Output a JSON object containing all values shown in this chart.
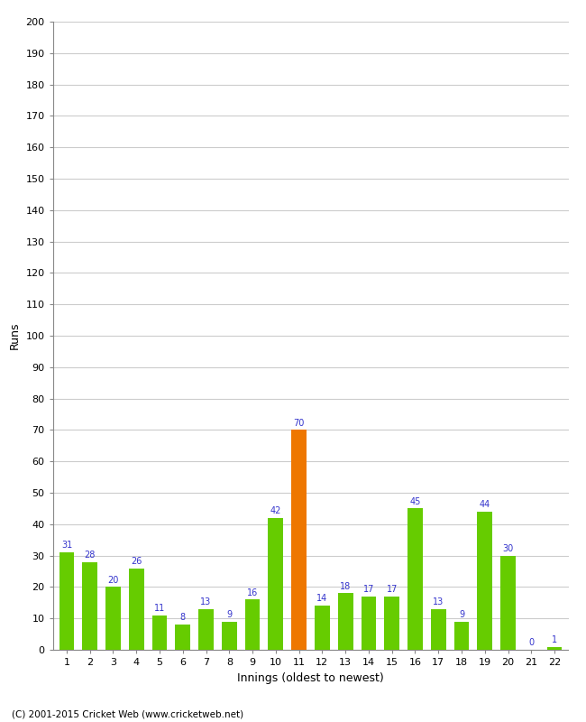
{
  "innings": [
    1,
    2,
    3,
    4,
    5,
    6,
    7,
    8,
    9,
    10,
    11,
    12,
    13,
    14,
    15,
    16,
    17,
    18,
    19,
    20,
    21,
    22
  ],
  "runs": [
    31,
    28,
    20,
    26,
    11,
    8,
    13,
    9,
    16,
    42,
    70,
    14,
    18,
    17,
    17,
    45,
    13,
    9,
    44,
    30,
    0,
    1
  ],
  "colors": [
    "#66cc00",
    "#66cc00",
    "#66cc00",
    "#66cc00",
    "#66cc00",
    "#66cc00",
    "#66cc00",
    "#66cc00",
    "#66cc00",
    "#66cc00",
    "#ee7700",
    "#66cc00",
    "#66cc00",
    "#66cc00",
    "#66cc00",
    "#66cc00",
    "#66cc00",
    "#66cc00",
    "#66cc00",
    "#66cc00",
    "#66cc00",
    "#66cc00"
  ],
  "xlabel": "Innings (oldest to newest)",
  "ylabel": "Runs",
  "ylim": [
    0,
    200
  ],
  "yticks": [
    0,
    10,
    20,
    30,
    40,
    50,
    60,
    70,
    80,
    90,
    100,
    110,
    120,
    130,
    140,
    150,
    160,
    170,
    180,
    190,
    200
  ],
  "label_color": "#3333cc",
  "background_color": "#ffffff",
  "grid_color": "#cccccc",
  "footer": "(C) 2001-2015 Cricket Web (www.cricketweb.net)",
  "bar_width": 0.65
}
